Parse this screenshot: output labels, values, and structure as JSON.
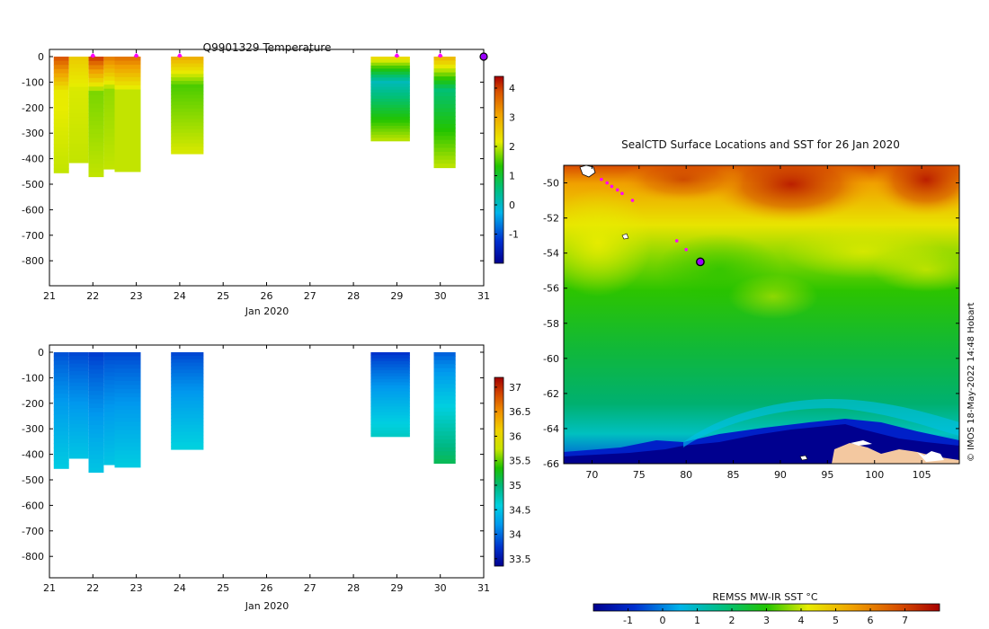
{
  "chart_data": [
    {
      "type": "heatmap",
      "title": "Q9901329  Temperature",
      "xlabel": "Jan 2020",
      "x_ticks": [
        "21",
        "22",
        "23",
        "24",
        "25",
        "26",
        "27",
        "28",
        "29",
        "30",
        "31"
      ],
      "y_ticks": [
        "0",
        "-100",
        "-200",
        "-300",
        "-400",
        "-500",
        "-600",
        "-700",
        "-800"
      ],
      "xlim": [
        21,
        31
      ],
      "ylim": [
        -900,
        0
      ],
      "colorbar": {
        "ticks": [
          "4",
          "3",
          "2",
          "1",
          "0",
          "-1"
        ],
        "range": [
          -2,
          4.4
        ]
      },
      "profiles": [
        {
          "x0": 21.1,
          "x1": 21.45,
          "depth": -455,
          "top": 3.9,
          "mid": 2.2,
          "bottom": 2.0
        },
        {
          "x0": 21.45,
          "x1": 21.9,
          "depth": -415,
          "top": 2.6,
          "mid": 2.1,
          "bottom": 2.0
        },
        {
          "x0": 21.9,
          "x1": 22.25,
          "depth": -470,
          "top": 4.1,
          "mid": 1.7,
          "bottom": 2.0
        },
        {
          "x0": 22.25,
          "x1": 22.5,
          "depth": -440,
          "top": 3.5,
          "mid": 1.8,
          "bottom": 2.0
        },
        {
          "x0": 22.5,
          "x1": 23.1,
          "depth": -450,
          "top": 3.6,
          "mid": 2.0,
          "bottom": 2.0
        },
        {
          "x0": 23.8,
          "x1": 24.55,
          "depth": -380,
          "top": 3.0,
          "mid": 1.5,
          "bottom": 2.1
        },
        {
          "x0": 28.4,
          "x1": 29.3,
          "depth": -330,
          "top": 2.5,
          "mid": 0.1,
          "bottom": 2.0
        },
        {
          "x0": 29.85,
          "x1": 30.35,
          "depth": -435,
          "top": 2.9,
          "mid": 0.6,
          "bottom": 2.0
        }
      ],
      "surface_markers": [
        22.0,
        23.0,
        24.0,
        29.0,
        30.0
      ],
      "current_marker": 31.0
    },
    {
      "type": "heatmap",
      "title": "",
      "xlabel": "Jan 2020",
      "x_ticks": [
        "21",
        "22",
        "23",
        "24",
        "25",
        "26",
        "27",
        "28",
        "29",
        "30",
        "31"
      ],
      "y_ticks": [
        "0",
        "-100",
        "-200",
        "-300",
        "-400",
        "-500",
        "-600",
        "-700",
        "-800"
      ],
      "xlim": [
        21,
        31
      ],
      "ylim": [
        -900,
        0
      ],
      "colorbar": {
        "ticks": [
          "37",
          "36.5",
          "36",
          "35.5",
          "35",
          "34.5",
          "34",
          "33.5"
        ],
        "range": [
          33.35,
          37.2
        ]
      },
      "profiles": [
        {
          "x0": 21.1,
          "x1": 21.45,
          "depth": -455,
          "top": 33.85,
          "bottom": 34.55
        },
        {
          "x0": 21.45,
          "x1": 21.9,
          "depth": -415,
          "top": 33.8,
          "bottom": 34.5
        },
        {
          "x0": 21.9,
          "x1": 22.25,
          "depth": -470,
          "top": 33.75,
          "bottom": 34.5
        },
        {
          "x0": 22.25,
          "x1": 22.5,
          "depth": -440,
          "top": 33.8,
          "bottom": 34.5
        },
        {
          "x0": 22.5,
          "x1": 23.1,
          "depth": -450,
          "top": 33.8,
          "bottom": 34.55
        },
        {
          "x0": 23.8,
          "x1": 24.55,
          "depth": -380,
          "top": 33.8,
          "bottom": 34.6
        },
        {
          "x0": 28.4,
          "x1": 29.3,
          "depth": -330,
          "top": 33.7,
          "bottom": 34.7
        },
        {
          "x0": 29.85,
          "x1": 30.35,
          "depth": -435,
          "top": 33.9,
          "bottom": 35.1
        }
      ]
    },
    {
      "type": "heatmap",
      "title": "SealCTD Surface Locations and SST for 26 Jan 2020",
      "x_ticks": [
        "70",
        "75",
        "80",
        "85",
        "90",
        "95",
        "100",
        "105"
      ],
      "y_ticks": [
        "-50",
        "-52",
        "-54",
        "-56",
        "-58",
        "-60",
        "-62",
        "-64",
        "-66"
      ],
      "xlim": [
        67,
        109
      ],
      "ylim": [
        -66,
        -49
      ],
      "colorbar": {
        "label": "REMSS MW-IR SST °C",
        "ticks": [
          "-1",
          "0",
          "1",
          "2",
          "3",
          "4",
          "5",
          "6",
          "7"
        ],
        "range": [
          -2,
          8
        ]
      },
      "track_points": [
        [
          71.0,
          -49.8
        ],
        [
          71.6,
          -50.0
        ],
        [
          72.1,
          -50.2
        ],
        [
          72.7,
          -50.4
        ],
        [
          73.2,
          -50.6
        ],
        [
          74.3,
          -51.0
        ],
        [
          79.0,
          -53.3
        ],
        [
          80.0,
          -53.8
        ]
      ],
      "current_location": [
        81.5,
        -54.5
      ]
    }
  ],
  "credit": "© IMOS 18-May-2022 14:48 Hobart"
}
